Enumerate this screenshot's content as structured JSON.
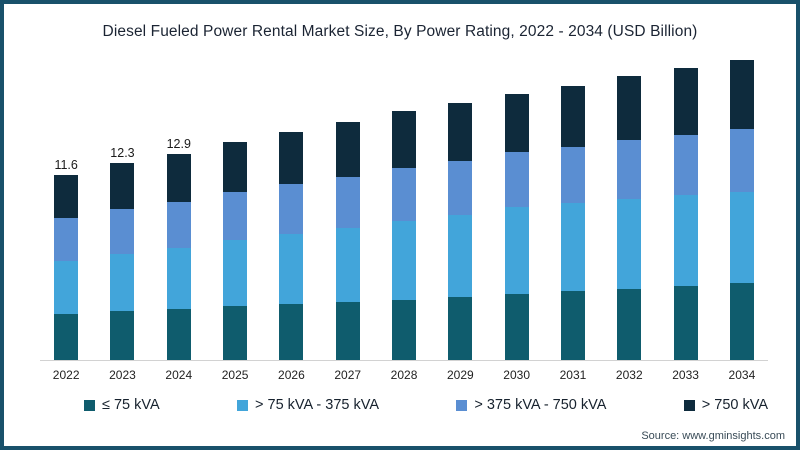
{
  "title": "Diesel Fueled Power Rental Market Size, By Power Rating, 2022 - 2034 (USD Billion)",
  "source_note": "Source: www.gminsights.com",
  "colors": {
    "frame_border": "#19516b",
    "axis_line": "#d2d2d2",
    "title_text": "#1b2433",
    "label_text": "#1a1a1a"
  },
  "chart_data": {
    "type": "bar",
    "stacked": true,
    "title": "Diesel Fueled Power Rental Market Size, By Power Rating, 2022 - 2034 (USD Billion)",
    "unit": "USD Billion",
    "legend_position": "bottom",
    "grid": false,
    "axes_labels_visible": false,
    "categories": [
      "2022",
      "2023",
      "2024",
      "2025",
      "2026",
      "2027",
      "2028",
      "2029",
      "2030",
      "2031",
      "2032",
      "2033",
      "2034"
    ],
    "series": [
      {
        "name": "≤ 75 kVA",
        "color": "#0f5c6d",
        "values": [
          2.9,
          3.05,
          3.2,
          3.35,
          3.5,
          3.6,
          3.75,
          3.95,
          4.1,
          4.3,
          4.45,
          4.6,
          4.8
        ]
      },
      {
        "name": "> 75 kVA - 375 kVA",
        "color": "#42a5da",
        "values": [
          3.3,
          3.55,
          3.8,
          4.1,
          4.35,
          4.6,
          4.9,
          5.1,
          5.4,
          5.5,
          5.6,
          5.65,
          5.7
        ]
      },
      {
        "name": "> 375 kVA - 750 kVA",
        "color": "#5a8ed2",
        "values": [
          2.7,
          2.8,
          2.9,
          3.0,
          3.1,
          3.2,
          3.3,
          3.35,
          3.4,
          3.5,
          3.65,
          3.75,
          3.9
        ]
      },
      {
        "name": "> 750 kVA",
        "color": "#0e2b3d",
        "values": [
          2.7,
          2.9,
          3.0,
          3.15,
          3.25,
          3.4,
          3.55,
          3.6,
          3.6,
          3.8,
          4.0,
          4.2,
          4.3
        ]
      }
    ],
    "totals_estimated": [
      11.6,
      12.3,
      12.9,
      13.6,
      14.2,
      14.8,
      15.5,
      16.0,
      16.5,
      17.1,
      17.7,
      18.2,
      18.7
    ],
    "visible_bar_labels": [
      "11.6",
      "12.3",
      "12.9"
    ]
  }
}
